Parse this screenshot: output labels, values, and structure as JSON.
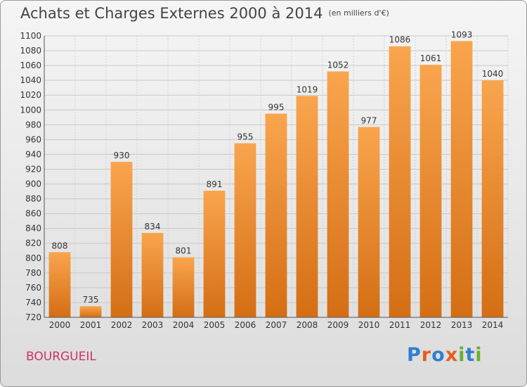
{
  "header": {
    "title": "Achats et Charges Externes 2000 à 2014",
    "subtitle": "(en milliers d'€)"
  },
  "footer": {
    "commune": "BOURGUEIL",
    "logo_text": "Proxiti"
  },
  "colors": {
    "bar_top": "#f9a54e",
    "bar_bottom": "#d46e14",
    "commune": "#cc3366",
    "logo": [
      "#2f7fd0",
      "#e85d1c",
      "#2f7fd0",
      "#e85d1c",
      "#66b032",
      "#2f7fd0",
      "#66b032"
    ]
  },
  "chart_data": {
    "type": "bar",
    "title": "Achats et Charges Externes 2000 à 2014",
    "subtitle": "(en milliers d'€)",
    "categories": [
      "2000",
      "2001",
      "2002",
      "2003",
      "2004",
      "2005",
      "2006",
      "2007",
      "2008",
      "2009",
      "2010",
      "2011",
      "2012",
      "2013",
      "2014"
    ],
    "values": [
      808,
      735,
      930,
      834,
      801,
      891,
      955,
      995,
      1019,
      1052,
      977,
      1086,
      1061,
      1093,
      1040
    ],
    "ylim": [
      720,
      1100
    ],
    "yticks": [
      720,
      740,
      760,
      780,
      800,
      820,
      840,
      860,
      880,
      900,
      920,
      940,
      960,
      980,
      1000,
      1020,
      1040,
      1060,
      1080,
      1100
    ],
    "grid": true,
    "legend": "none"
  }
}
